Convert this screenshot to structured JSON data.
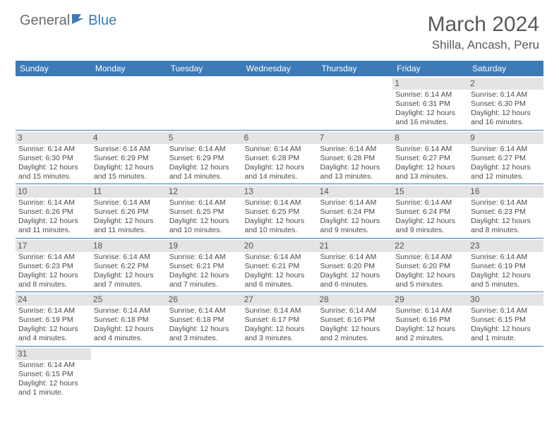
{
  "logo": {
    "text1": "General",
    "text2": "Blue"
  },
  "title": "March 2024",
  "location": "Shilla, Ancash, Peru",
  "colors": {
    "header_bg": "#3d7ab8",
    "daynum_bg": "#e4e4e4",
    "text": "#4a4a4a"
  },
  "weekdays": [
    "Sunday",
    "Monday",
    "Tuesday",
    "Wednesday",
    "Thursday",
    "Friday",
    "Saturday"
  ],
  "weeks": [
    [
      {
        "n": "",
        "sr": "",
        "ss": "",
        "dl": ""
      },
      {
        "n": "",
        "sr": "",
        "ss": "",
        "dl": ""
      },
      {
        "n": "",
        "sr": "",
        "ss": "",
        "dl": ""
      },
      {
        "n": "",
        "sr": "",
        "ss": "",
        "dl": ""
      },
      {
        "n": "",
        "sr": "",
        "ss": "",
        "dl": ""
      },
      {
        "n": "1",
        "sr": "Sunrise: 6:14 AM",
        "ss": "Sunset: 6:31 PM",
        "dl": "Daylight: 12 hours and 16 minutes."
      },
      {
        "n": "2",
        "sr": "Sunrise: 6:14 AM",
        "ss": "Sunset: 6:30 PM",
        "dl": "Daylight: 12 hours and 16 minutes."
      }
    ],
    [
      {
        "n": "3",
        "sr": "Sunrise: 6:14 AM",
        "ss": "Sunset: 6:30 PM",
        "dl": "Daylight: 12 hours and 15 minutes."
      },
      {
        "n": "4",
        "sr": "Sunrise: 6:14 AM",
        "ss": "Sunset: 6:29 PM",
        "dl": "Daylight: 12 hours and 15 minutes."
      },
      {
        "n": "5",
        "sr": "Sunrise: 6:14 AM",
        "ss": "Sunset: 6:29 PM",
        "dl": "Daylight: 12 hours and 14 minutes."
      },
      {
        "n": "6",
        "sr": "Sunrise: 6:14 AM",
        "ss": "Sunset: 6:28 PM",
        "dl": "Daylight: 12 hours and 14 minutes."
      },
      {
        "n": "7",
        "sr": "Sunrise: 6:14 AM",
        "ss": "Sunset: 6:28 PM",
        "dl": "Daylight: 12 hours and 13 minutes."
      },
      {
        "n": "8",
        "sr": "Sunrise: 6:14 AM",
        "ss": "Sunset: 6:27 PM",
        "dl": "Daylight: 12 hours and 13 minutes."
      },
      {
        "n": "9",
        "sr": "Sunrise: 6:14 AM",
        "ss": "Sunset: 6:27 PM",
        "dl": "Daylight: 12 hours and 12 minutes."
      }
    ],
    [
      {
        "n": "10",
        "sr": "Sunrise: 6:14 AM",
        "ss": "Sunset: 6:26 PM",
        "dl": "Daylight: 12 hours and 11 minutes."
      },
      {
        "n": "11",
        "sr": "Sunrise: 6:14 AM",
        "ss": "Sunset: 6:26 PM",
        "dl": "Daylight: 12 hours and 11 minutes."
      },
      {
        "n": "12",
        "sr": "Sunrise: 6:14 AM",
        "ss": "Sunset: 6:25 PM",
        "dl": "Daylight: 12 hours and 10 minutes."
      },
      {
        "n": "13",
        "sr": "Sunrise: 6:14 AM",
        "ss": "Sunset: 6:25 PM",
        "dl": "Daylight: 12 hours and 10 minutes."
      },
      {
        "n": "14",
        "sr": "Sunrise: 6:14 AM",
        "ss": "Sunset: 6:24 PM",
        "dl": "Daylight: 12 hours and 9 minutes."
      },
      {
        "n": "15",
        "sr": "Sunrise: 6:14 AM",
        "ss": "Sunset: 6:24 PM",
        "dl": "Daylight: 12 hours and 9 minutes."
      },
      {
        "n": "16",
        "sr": "Sunrise: 6:14 AM",
        "ss": "Sunset: 6:23 PM",
        "dl": "Daylight: 12 hours and 8 minutes."
      }
    ],
    [
      {
        "n": "17",
        "sr": "Sunrise: 6:14 AM",
        "ss": "Sunset: 6:23 PM",
        "dl": "Daylight: 12 hours and 8 minutes."
      },
      {
        "n": "18",
        "sr": "Sunrise: 6:14 AM",
        "ss": "Sunset: 6:22 PM",
        "dl": "Daylight: 12 hours and 7 minutes."
      },
      {
        "n": "19",
        "sr": "Sunrise: 6:14 AM",
        "ss": "Sunset: 6:21 PM",
        "dl": "Daylight: 12 hours and 7 minutes."
      },
      {
        "n": "20",
        "sr": "Sunrise: 6:14 AM",
        "ss": "Sunset: 6:21 PM",
        "dl": "Daylight: 12 hours and 6 minutes."
      },
      {
        "n": "21",
        "sr": "Sunrise: 6:14 AM",
        "ss": "Sunset: 6:20 PM",
        "dl": "Daylight: 12 hours and 6 minutes."
      },
      {
        "n": "22",
        "sr": "Sunrise: 6:14 AM",
        "ss": "Sunset: 6:20 PM",
        "dl": "Daylight: 12 hours and 5 minutes."
      },
      {
        "n": "23",
        "sr": "Sunrise: 6:14 AM",
        "ss": "Sunset: 6:19 PM",
        "dl": "Daylight: 12 hours and 5 minutes."
      }
    ],
    [
      {
        "n": "24",
        "sr": "Sunrise: 6:14 AM",
        "ss": "Sunset: 6:19 PM",
        "dl": "Daylight: 12 hours and 4 minutes."
      },
      {
        "n": "25",
        "sr": "Sunrise: 6:14 AM",
        "ss": "Sunset: 6:18 PM",
        "dl": "Daylight: 12 hours and 4 minutes."
      },
      {
        "n": "26",
        "sr": "Sunrise: 6:14 AM",
        "ss": "Sunset: 6:18 PM",
        "dl": "Daylight: 12 hours and 3 minutes."
      },
      {
        "n": "27",
        "sr": "Sunrise: 6:14 AM",
        "ss": "Sunset: 6:17 PM",
        "dl": "Daylight: 12 hours and 3 minutes."
      },
      {
        "n": "28",
        "sr": "Sunrise: 6:14 AM",
        "ss": "Sunset: 6:16 PM",
        "dl": "Daylight: 12 hours and 2 minutes."
      },
      {
        "n": "29",
        "sr": "Sunrise: 6:14 AM",
        "ss": "Sunset: 6:16 PM",
        "dl": "Daylight: 12 hours and 2 minutes."
      },
      {
        "n": "30",
        "sr": "Sunrise: 6:14 AM",
        "ss": "Sunset: 6:15 PM",
        "dl": "Daylight: 12 hours and 1 minute."
      }
    ],
    [
      {
        "n": "31",
        "sr": "Sunrise: 6:14 AM",
        "ss": "Sunset: 6:15 PM",
        "dl": "Daylight: 12 hours and 1 minute."
      },
      {
        "n": "",
        "sr": "",
        "ss": "",
        "dl": ""
      },
      {
        "n": "",
        "sr": "",
        "ss": "",
        "dl": ""
      },
      {
        "n": "",
        "sr": "",
        "ss": "",
        "dl": ""
      },
      {
        "n": "",
        "sr": "",
        "ss": "",
        "dl": ""
      },
      {
        "n": "",
        "sr": "",
        "ss": "",
        "dl": ""
      },
      {
        "n": "",
        "sr": "",
        "ss": "",
        "dl": ""
      }
    ]
  ]
}
